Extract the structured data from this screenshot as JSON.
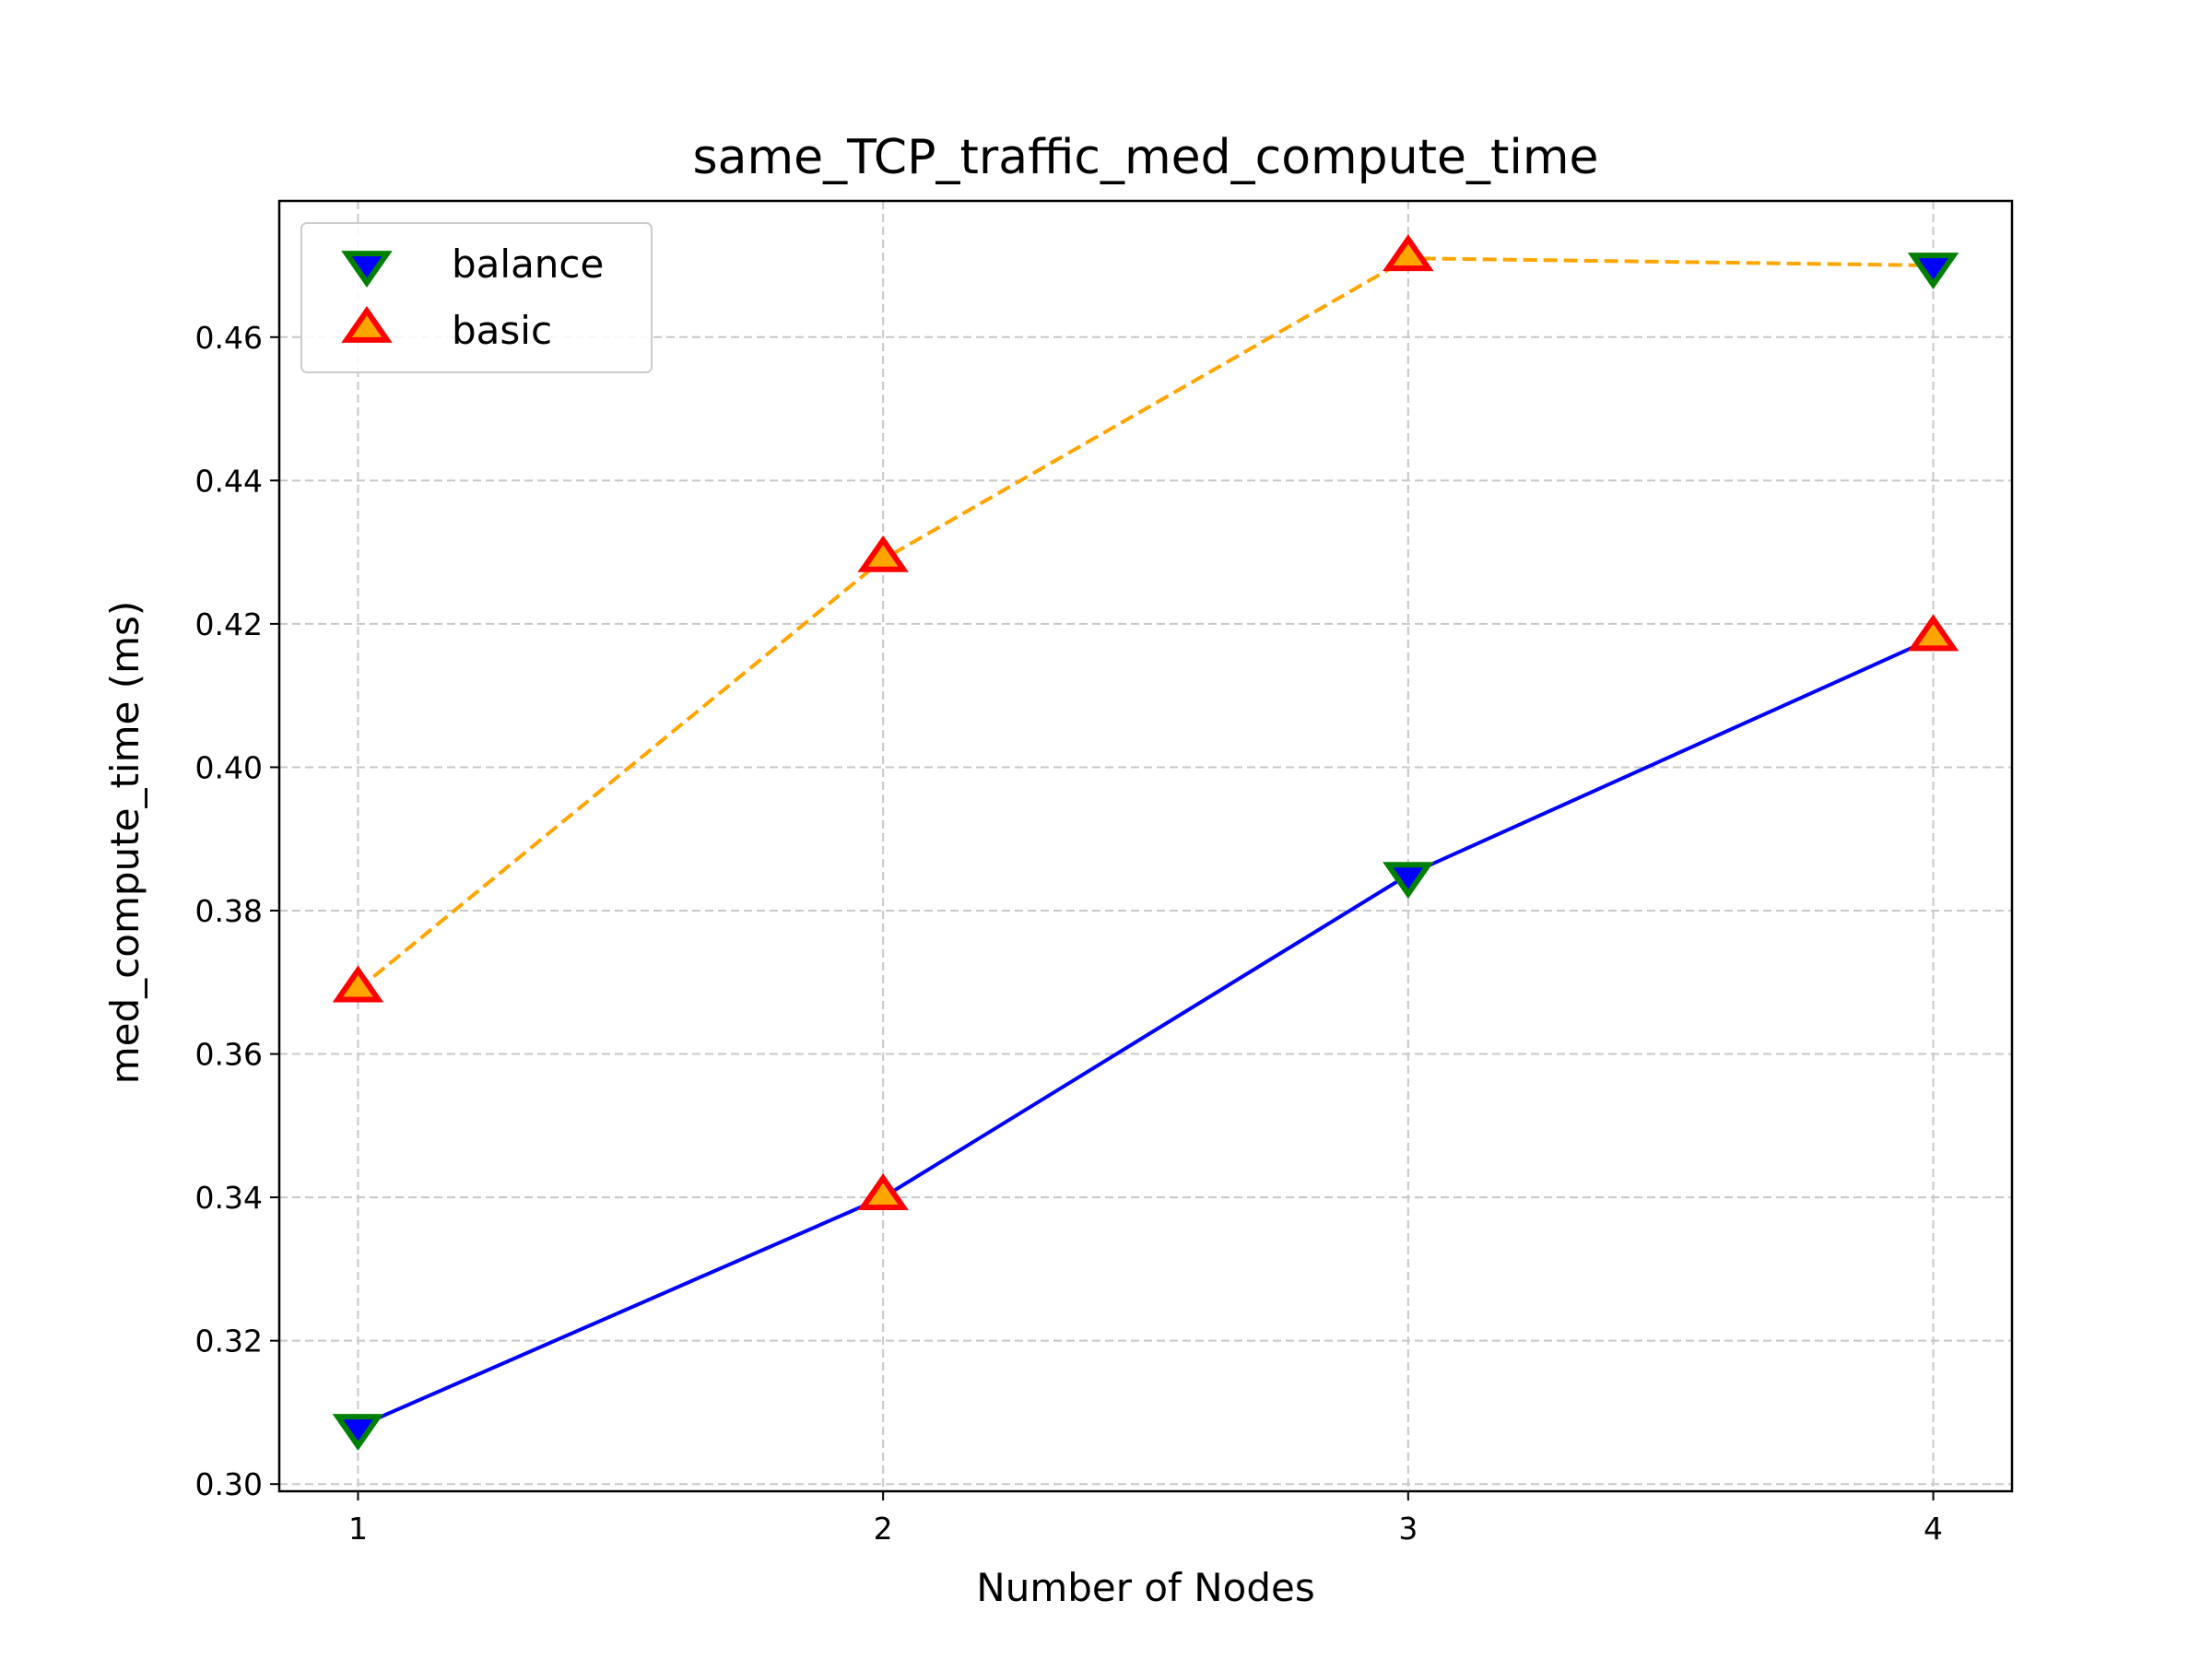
{
  "chart_data": {
    "type": "line",
    "title": "same_TCP_traffic_med_compute_time",
    "xlabel": "Number of Nodes",
    "ylabel": "med_compute_time (ms)",
    "x": [
      1,
      2,
      3,
      4
    ],
    "xticks": [
      "1",
      "2",
      "3",
      "4"
    ],
    "xlim": [
      0.85,
      4.15
    ],
    "ylim": [
      0.299,
      0.479
    ],
    "yticks": [
      "0.30",
      "0.32",
      "0.34",
      "0.36",
      "0.38",
      "0.40",
      "0.42",
      "0.44",
      "0.46"
    ],
    "grid": true,
    "legend_position": "top-left",
    "legend": [
      {
        "label": "balance",
        "marker": "triangle-down",
        "fill": "#0000ff",
        "edge": "#008000"
      },
      {
        "label": "basic",
        "marker": "triangle-up",
        "fill": "#ffa500",
        "edge": "#ff0000"
      }
    ],
    "series": [
      {
        "values": [
          0.308,
          0.34,
          0.385,
          0.418
        ],
        "line_color": "#0000ff",
        "line_style": "solid",
        "markers": [
          "triangle-down",
          "triangle-up",
          "triangle-down",
          "triangle-up"
        ]
      },
      {
        "values": [
          0.369,
          0.429,
          0.471,
          0.47
        ],
        "line_color": "#ffa500",
        "line_style": "dashed",
        "markers": [
          "triangle-up",
          "triangle-up",
          "triangle-up",
          "triangle-down"
        ]
      }
    ]
  }
}
